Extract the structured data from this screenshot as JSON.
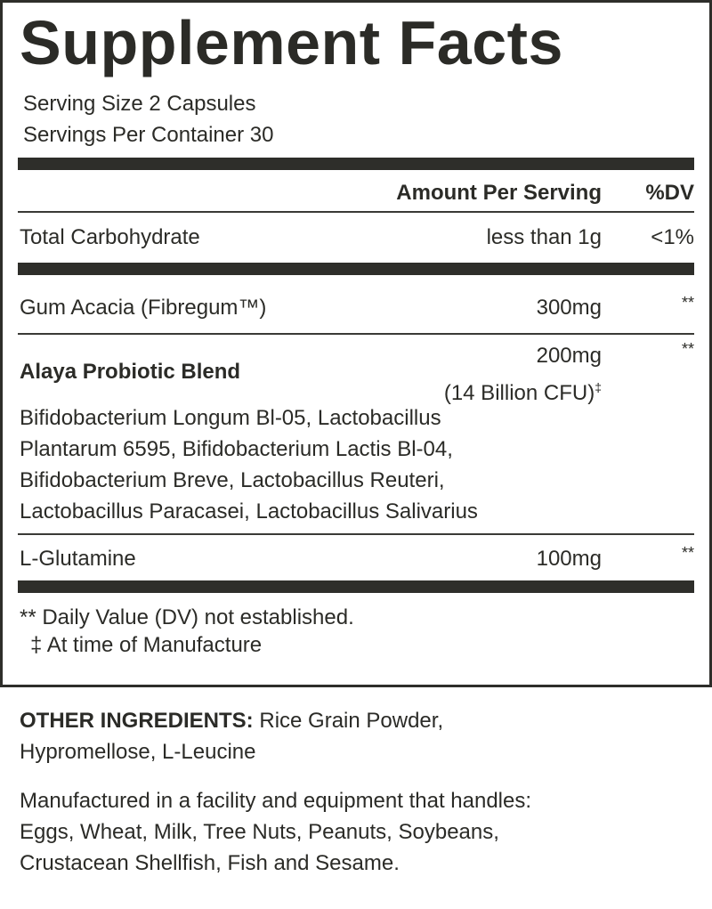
{
  "title": "Supplement Facts",
  "serving_size": "Serving Size 2 Capsules",
  "servings_per_container": "Servings Per Container 30",
  "header": {
    "amount": "Amount Per Serving",
    "dv": "%DV"
  },
  "rows": [
    {
      "name": "Total Carbohydrate",
      "amount": "less than 1g",
      "dv": "<1%"
    },
    {
      "name": "Gum Acacia (Fibregum™)",
      "amount": "300mg",
      "dv": "**"
    },
    {
      "name": "Alaya Probiotic Blend",
      "amount": "200mg",
      "amount_note": "(14 Billion CFU)",
      "amount_mark": "‡",
      "dv": "**",
      "strains": [
        "Bifidobacterium Longum Bl-05, Lactobacillus",
        "Plantarum 6595, Bifidobacterium Lactis Bl-04,",
        "Bifidobacterium Breve, Lactobacillus Reuteri,",
        "Lactobacillus Paracasei, Lactobacillus Salivarius"
      ]
    },
    {
      "name": "L-Glutamine",
      "amount": "100mg",
      "dv": "**"
    }
  ],
  "footnotes": [
    "** Daily Value (DV) not established.",
    "‡ At time of Manufacture"
  ],
  "other_ingredients": {
    "label": "OTHER INGREDIENTS:",
    "text": " Rice Grain Powder,",
    "line2": "Hypromellose, L-Leucine"
  },
  "allergen": [
    "Manufactured in a facility and equipment that handles:",
    "Eggs, Wheat, Milk, Tree Nuts, Peanuts, Soybeans,",
    "Crustacean Shellfish, Fish and Sesame."
  ]
}
